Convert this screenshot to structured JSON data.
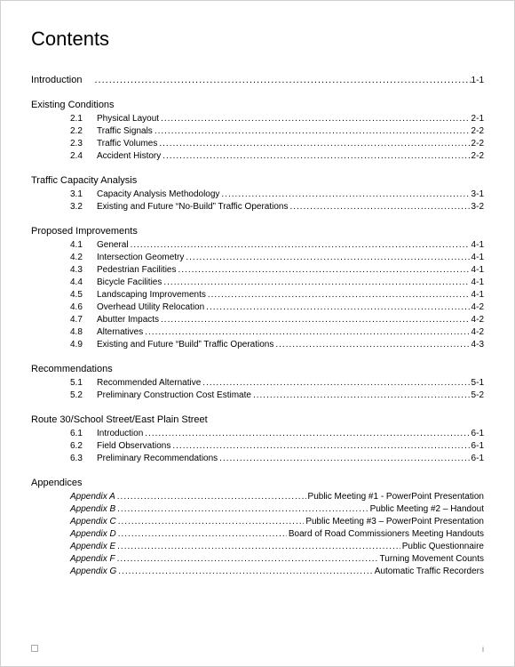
{
  "title": "Contents",
  "intro": {
    "label": "Introduction",
    "page": "1-1"
  },
  "sections": [
    {
      "heading": "Existing Conditions",
      "items": [
        {
          "num": "2.1",
          "label": "Physical Layout",
          "page": "2-1"
        },
        {
          "num": "2.2",
          "label": "Traffic Signals",
          "page": "2-2"
        },
        {
          "num": "2.3",
          "label": "Traffic Volumes",
          "page": "2-2"
        },
        {
          "num": "2.4",
          "label": "Accident History",
          "page": "2-2"
        }
      ]
    },
    {
      "heading": "Traffic Capacity Analysis",
      "items": [
        {
          "num": "3.1",
          "label": "Capacity Analysis Methodology",
          "page": "3-1"
        },
        {
          "num": "3.2",
          "label": "Existing and Future “No-Build” Traffic Operations",
          "page": "3-2"
        }
      ]
    },
    {
      "heading": "Proposed Improvements",
      "items": [
        {
          "num": "4.1",
          "label": "General",
          "page": "4-1"
        },
        {
          "num": "4.2",
          "label": "Intersection Geometry",
          "page": "4-1"
        },
        {
          "num": "4.3",
          "label": "Pedestrian Facilities",
          "page": "4-1"
        },
        {
          "num": "4.4",
          "label": "Bicycle Facilities",
          "page": "4-1"
        },
        {
          "num": "4.5",
          "label": "Landscaping Improvements",
          "page": "4-1"
        },
        {
          "num": "4.6",
          "label": "Overhead Utility Relocation",
          "page": "4-2"
        },
        {
          "num": "4.7",
          "label": "Abutter Impacts",
          "page": "4-2"
        },
        {
          "num": "4.8",
          "label": "Alternatives",
          "page": "4-2"
        },
        {
          "num": "4.9",
          "label": "Existing and Future “Build” Traffic Operations",
          "page": "4-3"
        }
      ]
    },
    {
      "heading": "Recommendations",
      "items": [
        {
          "num": "5.1",
          "label": "Recommended Alternative",
          "page": "5-1"
        },
        {
          "num": "5.2",
          "label": "Preliminary Construction Cost Estimate",
          "page": "5-2"
        }
      ]
    },
    {
      "heading": "Route 30/School Street/East Plain Street",
      "items": [
        {
          "num": "6.1",
          "label": "Introduction",
          "page": "6-1"
        },
        {
          "num": "6.2",
          "label": "Field Observations",
          "page": "6-1"
        },
        {
          "num": "6.3",
          "label": "Preliminary Recommendations",
          "page": "6-1"
        }
      ]
    }
  ],
  "appendices": {
    "heading": "Appendices",
    "items": [
      {
        "label": "Appendix A",
        "desc": "Public Meeting #1 - PowerPoint Presentation"
      },
      {
        "label": "Appendix B",
        "desc": "Public Meeting #2 – Handout"
      },
      {
        "label": "Appendix C",
        "desc": "Public Meeting #3 – PowerPoint Presentation"
      },
      {
        "label": "Appendix D",
        "desc": "Board of Road Commissioners Meeting Handouts"
      },
      {
        "label": "Appendix E",
        "desc": "Public Questionnaire"
      },
      {
        "label": "Appendix F",
        "desc": "Turning Movement Counts"
      },
      {
        "label": "Appendix G",
        "desc": "Automatic Traffic Recorders"
      }
    ]
  },
  "footer": {
    "page_num": "i"
  }
}
